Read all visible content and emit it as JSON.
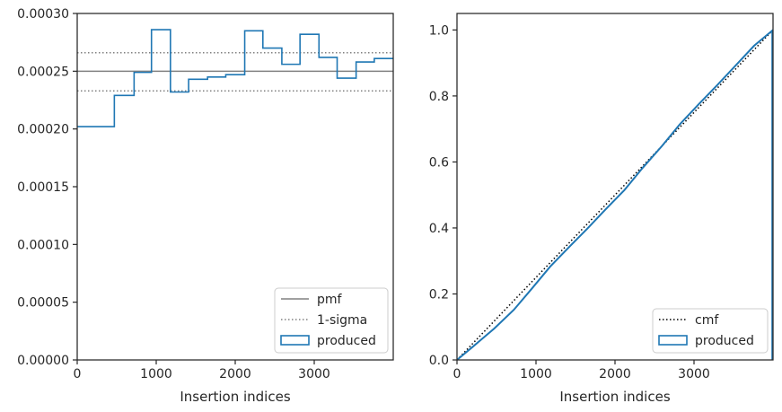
{
  "chart_data": [
    {
      "type": "histogram",
      "xlabel": "Insertion indices",
      "ylabel": "",
      "xlim": [
        0,
        4000
      ],
      "ylim": [
        0,
        0.0003
      ],
      "x_ticks": [
        0,
        1000,
        2000,
        3000
      ],
      "x_tick_labels": [
        "0",
        "1000",
        "2000",
        "3000"
      ],
      "y_ticks": [
        0,
        5e-05,
        0.0001,
        0.00015,
        0.0002,
        0.00025,
        0.0003
      ],
      "y_tick_labels": [
        "0.00000",
        "0.00005",
        "0.00010",
        "0.00015",
        "0.00020",
        "0.00025",
        "0.00030"
      ],
      "legend_position": "lower-right",
      "series": [
        {
          "name": "pmf",
          "kind": "hline",
          "y": 0.00025,
          "color": "#808080",
          "style": "solid"
        },
        {
          "name": "1-sigma",
          "kind": "hlines",
          "y": [
            0.000233,
            0.000266
          ],
          "color": "#808080",
          "style": "dotted"
        },
        {
          "name": "produced",
          "kind": "step-histogram",
          "color": "#1f77b4",
          "bin_edges": [
            0,
            470,
            720,
            940,
            1180,
            1410,
            1650,
            1880,
            2120,
            2350,
            2590,
            2820,
            3060,
            3290,
            3530,
            3760,
            4000
          ],
          "values": [
            0.000202,
            0.000229,
            0.000249,
            0.000286,
            0.000232,
            0.000243,
            0.000245,
            0.000247,
            0.000285,
            0.00027,
            0.000256,
            0.000282,
            0.000262,
            0.000244,
            0.000258,
            0.000261
          ]
        }
      ]
    },
    {
      "type": "line",
      "xlabel": "Insertion indices",
      "ylabel": "",
      "xlim": [
        0,
        4000
      ],
      "ylim": [
        0,
        1.05
      ],
      "x_ticks": [
        0,
        1000,
        2000,
        3000
      ],
      "x_tick_labels": [
        "0",
        "1000",
        "2000",
        "3000"
      ],
      "y_ticks": [
        0,
        0.2,
        0.4,
        0.6,
        0.8,
        1.0
      ],
      "y_tick_labels": [
        "0.0",
        "0.2",
        "0.4",
        "0.6",
        "0.8",
        "1.0"
      ],
      "legend_position": "lower-right",
      "series": [
        {
          "name": "cmf",
          "color": "#000000",
          "style": "dotted",
          "x": [
            0,
            4000
          ],
          "y": [
            0,
            1.0
          ]
        },
        {
          "name": "produced",
          "color": "#1f77b4",
          "style": "solid",
          "x": [
            0,
            200,
            470,
            720,
            940,
            1180,
            1410,
            1650,
            1880,
            2120,
            2350,
            2590,
            2820,
            3060,
            3290,
            3530,
            3760,
            4000
          ],
          "y": [
            0,
            0.04,
            0.095,
            0.152,
            0.214,
            0.283,
            0.34,
            0.398,
            0.456,
            0.515,
            0.582,
            0.647,
            0.714,
            0.775,
            0.832,
            0.893,
            0.952,
            1.0
          ]
        }
      ]
    }
  ]
}
